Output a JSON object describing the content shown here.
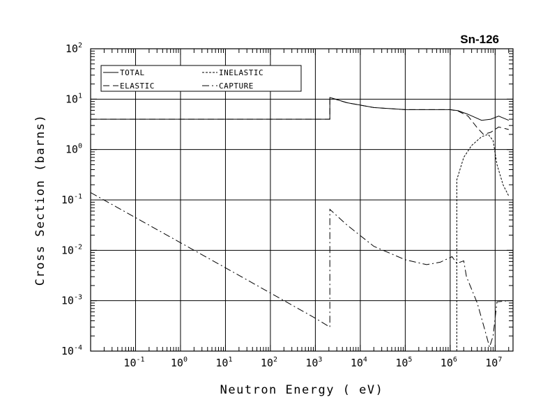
{
  "chart_data": {
    "type": "line",
    "title": "Sn-126",
    "xlabel": "Neutron Energy ( eV)",
    "ylabel": "Cross Section (barns)",
    "xscale": "log",
    "yscale": "log",
    "xlim": [
      0.01,
      25000000
    ],
    "ylim": [
      0.0001,
      100
    ],
    "grid": "major decades",
    "legend_position": "top-left",
    "x_ticks": [
      {
        "base": "10",
        "exp": "-1",
        "value": 0.1
      },
      {
        "base": "10",
        "exp": "0",
        "value": 1
      },
      {
        "base": "10",
        "exp": "1",
        "value": 10
      },
      {
        "base": "10",
        "exp": "2",
        "value": 100
      },
      {
        "base": "10",
        "exp": "3",
        "value": 1000
      },
      {
        "base": "10",
        "exp": "4",
        "value": 10000
      },
      {
        "base": "10",
        "exp": "5",
        "value": 100000
      },
      {
        "base": "10",
        "exp": "6",
        "value": 1000000
      },
      {
        "base": "10",
        "exp": "7",
        "value": 10000000
      }
    ],
    "y_ticks": [
      {
        "base": "10",
        "exp": "-4",
        "value": 0.0001
      },
      {
        "base": "10",
        "exp": "-3",
        "value": 0.001
      },
      {
        "base": "10",
        "exp": "-2",
        "value": 0.01
      },
      {
        "base": "10",
        "exp": "-1",
        "value": 0.1
      },
      {
        "base": "10",
        "exp": "0",
        "value": 1
      },
      {
        "base": "10",
        "exp": "1",
        "value": 10
      },
      {
        "base": "10",
        "exp": "2",
        "value": 100
      }
    ],
    "series": [
      {
        "name": "TOTAL",
        "dash": "solid",
        "points": [
          [
            0.01,
            4.0
          ],
          [
            1250,
            4.0
          ],
          [
            1250,
            4.0
          ],
          [
            2100,
            4.0
          ],
          [
            2100,
            10.8
          ],
          [
            5000,
            8.5
          ],
          [
            20000,
            6.8
          ],
          [
            100000,
            6.2
          ],
          [
            1000000,
            6.2
          ],
          [
            1500000,
            5.9
          ],
          [
            2500000,
            5.0
          ],
          [
            5000000,
            3.8
          ],
          [
            8000000,
            4.0
          ],
          [
            12000000,
            4.6
          ],
          [
            20000000,
            3.8
          ]
        ]
      },
      {
        "name": "ELASTIC",
        "dash": "long-dash",
        "points": [
          [
            0.01,
            4.0
          ],
          [
            1250,
            4.0
          ],
          [
            1250,
            4.0
          ],
          [
            2100,
            4.0
          ],
          [
            2100,
            10.8
          ],
          [
            5000,
            8.5
          ],
          [
            20000,
            6.8
          ],
          [
            100000,
            6.2
          ],
          [
            1000000,
            6.2
          ],
          [
            1500000,
            5.8
          ],
          [
            2500000,
            4.6
          ],
          [
            4000000,
            2.7
          ],
          [
            5500000,
            2.0
          ],
          [
            8000000,
            2.2
          ],
          [
            12000000,
            2.8
          ],
          [
            20000000,
            2.5
          ]
        ]
      },
      {
        "name": "INELASTIC",
        "dash": "short-dash",
        "points": [
          [
            1400000,
            0.0001
          ],
          [
            1400000,
            0.25
          ],
          [
            2000000,
            0.7
          ],
          [
            3000000,
            1.2
          ],
          [
            5000000,
            1.8
          ],
          [
            7000000,
            2.0
          ],
          [
            9000000,
            1.5
          ],
          [
            11000000,
            0.5
          ],
          [
            15000000,
            0.2
          ],
          [
            20000000,
            0.12
          ]
        ]
      },
      {
        "name": "CAPTURE",
        "dash": "dash-dot",
        "points": [
          [
            0.01,
            0.14
          ],
          [
            10,
            0.0045
          ],
          [
            1000,
            0.00045
          ],
          [
            2100,
            0.0003
          ],
          [
            2100,
            0.065
          ],
          [
            5000,
            0.032
          ],
          [
            20000,
            0.012
          ],
          [
            100000,
            0.0065
          ],
          [
            300000,
            0.0052
          ],
          [
            600000,
            0.0058
          ],
          [
            1100000,
            0.0075
          ],
          [
            1400000,
            0.0055
          ],
          [
            2000000,
            0.0062
          ],
          [
            2300000,
            0.003
          ],
          [
            4000000,
            0.0009
          ],
          [
            6000000,
            0.00025
          ],
          [
            7500000,
            0.00012
          ],
          [
            9000000,
            0.0002
          ],
          [
            11000000,
            0.00095
          ],
          [
            20000000,
            0.001
          ]
        ]
      }
    ]
  }
}
